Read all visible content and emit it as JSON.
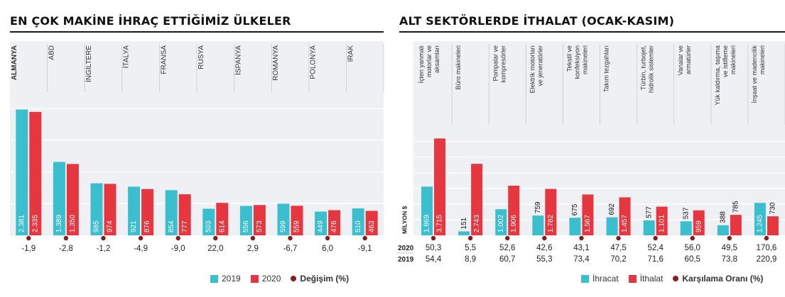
{
  "colors": {
    "series_a": "#3bbfcf",
    "series_b": "#e63741",
    "marker": "#8b1a1a",
    "chart_bg": "#eef0f3"
  },
  "left": {
    "title": "EN ÇOK MAKİNE İHRAÇ ETTİĞİMİZ ÜLKELER",
    "legend": {
      "a": "2019",
      "b": "2020",
      "c": "Değişim (%)"
    }
  },
  "right": {
    "title": "ALT SEKTÖRLERDE İTHALAT (OCAK-KASIM)",
    "legend": {
      "a": "İhracat",
      "b": "İthalat",
      "c": "Karşılama Oranı (%)"
    },
    "y_unit": "MİLYON $",
    "year_labels": [
      "2020",
      "2019"
    ]
  },
  "chart_data": [
    {
      "type": "bar",
      "categories": [
        "ALMANYA",
        "ABD",
        "İNGİLTERE",
        "İTALYA",
        "FRANSA",
        "RUSYA",
        "İSPANYA",
        "ROMANYA",
        "POLONYA",
        "IRAK"
      ],
      "series": [
        {
          "name": "2019",
          "values": [
            2381,
            1389,
            985,
            921,
            854,
            503,
            556,
            599,
            449,
            510
          ]
        },
        {
          "name": "2020",
          "values": [
            2335,
            1350,
            974,
            876,
            777,
            614,
            573,
            559,
            476,
            463
          ]
        }
      ],
      "value_labels": {
        "2019": [
          "2.381",
          "1.389",
          "985",
          "921",
          "854",
          "503",
          "556",
          "599",
          "449",
          "510"
        ],
        "2020": [
          "2.335",
          "1.350",
          "974",
          "876",
          "777",
          "614",
          "573",
          "559",
          "476",
          "463"
        ]
      },
      "change_pct": [
        "-1,9",
        "-2,8",
        "-1,2",
        "-4,9",
        "-9,0",
        "22,0",
        "2,9",
        "-6,7",
        "6,0",
        "-9,1"
      ],
      "ylim": [
        0,
        2500
      ],
      "grid": true,
      "legend_position": "bottom-right"
    },
    {
      "type": "bar",
      "categories": [
        "İçten yanmalı motorlar ve aksamları",
        "Büro makineleri",
        "Pompalar ve kompresörler",
        "Elektrik motorları ve jeneratörler",
        "Tekstil ve konfeksiyon makineleri",
        "Takım tezgahları",
        "Türbin, turbojet, hidrolik sistemler",
        "Vanalar ve armatürler",
        "Yük kaldırma, taşıma ve istifleme makineleri",
        "İnşaat ve madencilik makineleri"
      ],
      "series": [
        {
          "name": "İhracat",
          "values": [
            1869,
            151,
            1002,
            759,
            675,
            692,
            577,
            537,
            388,
            1245
          ]
        },
        {
          "name": "İthalat",
          "values": [
            3715,
            2743,
            1906,
            1782,
            1567,
            1457,
            1101,
            959,
            785,
            730
          ]
        }
      ],
      "value_labels": {
        "İhracat": [
          "1.869",
          "151",
          "1.002",
          "759",
          "675",
          "692",
          "577",
          "537",
          "388",
          "1.245"
        ],
        "İthalat": [
          "3.715",
          "2.743",
          "1.906",
          "1.782",
          "1.567",
          "1.457",
          "1.101",
          "959",
          "785",
          "730"
        ]
      },
      "coverage_ratio_2020": [
        "50,3",
        "5,5",
        "52,6",
        "42,6",
        "43,1",
        "47,5",
        "52,4",
        "56,0",
        "49,5",
        "170,6"
      ],
      "coverage_ratio_2019": [
        "54,4",
        "8,9",
        "60,7",
        "55,3",
        "73,4",
        "70,2",
        "71,6",
        "60,5",
        "73,8",
        "220,9"
      ],
      "ylabel": "MİLYON $",
      "ylim": [
        0,
        4000
      ],
      "grid": true,
      "legend_position": "bottom-right"
    }
  ]
}
